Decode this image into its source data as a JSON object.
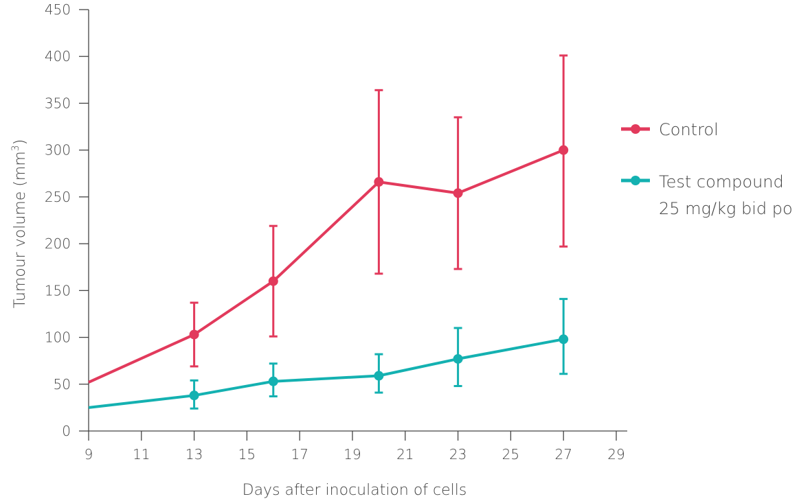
{
  "chart_data": {
    "type": "line",
    "xlabel": "Days after inoculation of cells",
    "ylabel_main": "Tumour volume (mm",
    "ylabel_sup": "3",
    "ylabel_close": ")",
    "xlim": [
      9,
      29
    ],
    "ylim": [
      0,
      450
    ],
    "x_ticks": [
      9,
      11,
      13,
      15,
      17,
      19,
      21,
      23,
      25,
      27,
      29
    ],
    "y_ticks": [
      0,
      50,
      100,
      150,
      200,
      250,
      300,
      350,
      400,
      450
    ],
    "grid": false,
    "legend_position": "right",
    "series": [
      {
        "name": "Control",
        "color": "#e23a5c",
        "start": {
          "x": 9,
          "y": 52
        },
        "points": [
          {
            "x": 13,
            "y": 103,
            "err_low": 69,
            "err_high": 137
          },
          {
            "x": 16,
            "y": 160,
            "err_low": 101,
            "err_high": 219
          },
          {
            "x": 20,
            "y": 266,
            "err_low": 168,
            "err_high": 364
          },
          {
            "x": 23,
            "y": 254,
            "err_low": 173,
            "err_high": 335
          },
          {
            "x": 27,
            "y": 300,
            "err_low": 197,
            "err_high": 401
          }
        ]
      },
      {
        "name": "Test compound",
        "name_line2": "25 mg/kg bid po",
        "color": "#14b1b1",
        "start": {
          "x": 9,
          "y": 25
        },
        "points": [
          {
            "x": 13,
            "y": 38,
            "err_low": 24,
            "err_high": 54
          },
          {
            "x": 16,
            "y": 53,
            "err_low": 37,
            "err_high": 72
          },
          {
            "x": 20,
            "y": 59,
            "err_low": 41,
            "err_high": 82
          },
          {
            "x": 23,
            "y": 77,
            "err_low": 48,
            "err_high": 110
          },
          {
            "x": 27,
            "y": 98,
            "err_low": 61,
            "err_high": 141
          }
        ]
      }
    ]
  }
}
